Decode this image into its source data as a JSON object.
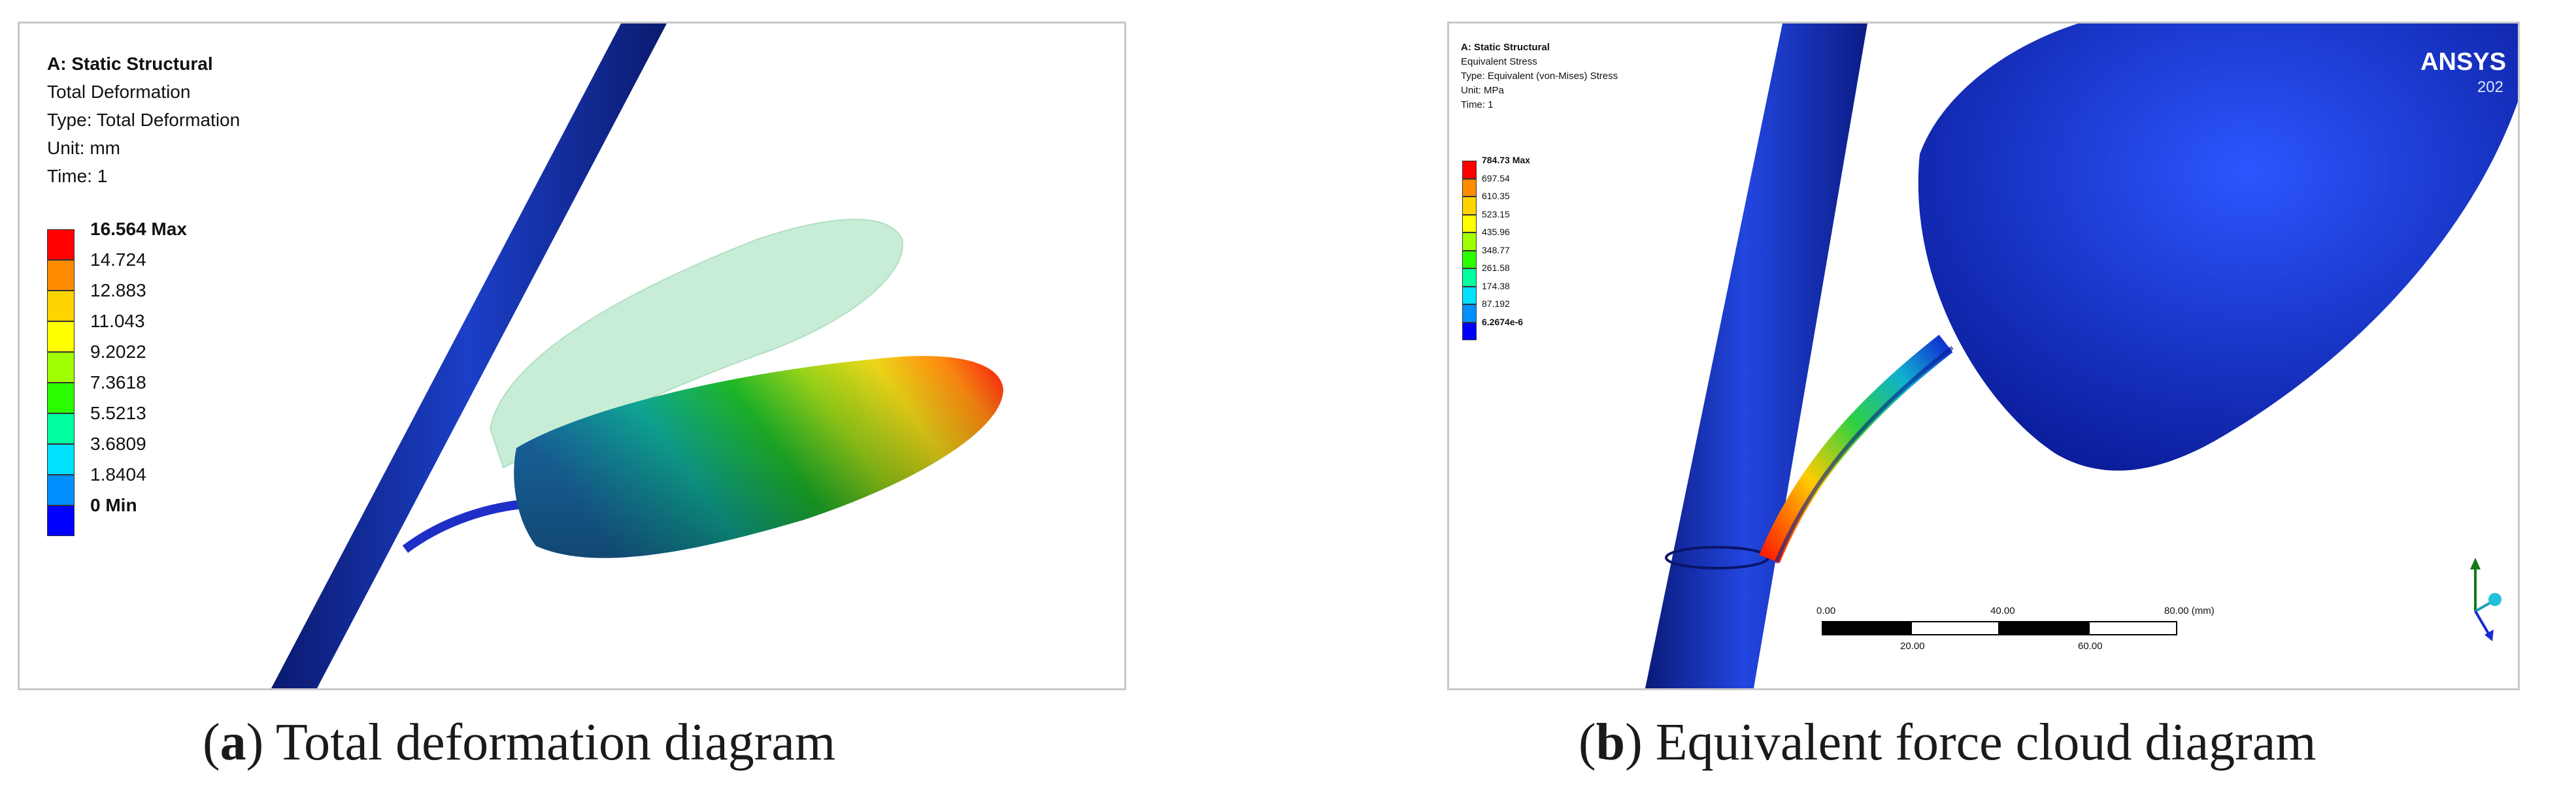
{
  "panel_a": {
    "header": [
      "A: Static Structural",
      "Total Deformation",
      "Type: Total Deformation",
      "Unit: mm",
      "Time: 1"
    ],
    "legend": [
      {
        "label": "16.564 Max",
        "color": "#ff0000"
      },
      {
        "label": "14.724",
        "color": "#ff8c00"
      },
      {
        "label": "12.883",
        "color": "#ffd400"
      },
      {
        "label": "11.043",
        "color": "#ffff00"
      },
      {
        "label": "9.2022",
        "color": "#a0ff00"
      },
      {
        "label": "7.3618",
        "color": "#2cff00"
      },
      {
        "label": "5.5213",
        "color": "#00ffa0"
      },
      {
        "label": "3.6809",
        "color": "#00e0ff"
      },
      {
        "label": "1.8404",
        "color": "#0090ff"
      },
      {
        "label": "0 Min",
        "color": "#0000ff"
      }
    ],
    "caption_letter": "a",
    "caption_text": ") Total deformation diagram",
    "caption_open": "("
  },
  "panel_b": {
    "header": [
      "A: Static Structural",
      "Equivalent Stress",
      "Type: Equivalent (von-Mises) Stress",
      "Unit: MPa",
      "Time: 1"
    ],
    "legend": [
      {
        "label": "784.73 Max",
        "color": "#ff0000"
      },
      {
        "label": "697.54",
        "color": "#ff8c00"
      },
      {
        "label": "610.35",
        "color": "#ffd400"
      },
      {
        "label": "523.15",
        "color": "#ffff00"
      },
      {
        "label": "435.96",
        "color": "#a0ff00"
      },
      {
        "label": "348.77",
        "color": "#2cff00"
      },
      {
        "label": "261.58",
        "color": "#00ffa0"
      },
      {
        "label": "174.38",
        "color": "#00e0ff"
      },
      {
        "label": "87.192",
        "color": "#0090ff"
      },
      {
        "label": "6.2674e-6",
        "color": "#0000ff"
      }
    ],
    "logo_text": "ANSYS",
    "logo_sub": "202",
    "scale_labels_top": [
      "0.00",
      "40.00",
      "80.00 (mm)"
    ],
    "scale_labels_bottom": [
      "20.00",
      "60.00"
    ],
    "caption_letter": "b",
    "caption_text": ") Equivalent force cloud diagram",
    "caption_open": "("
  }
}
